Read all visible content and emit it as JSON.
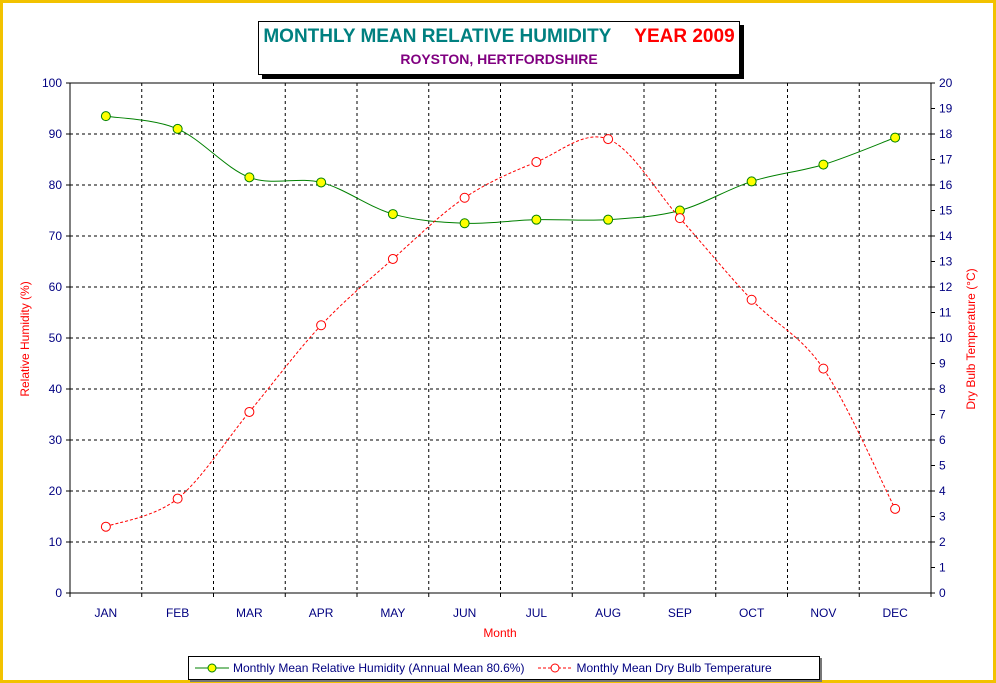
{
  "title": {
    "main": "MONTHLY MEAN RELATIVE HUMIDITY",
    "year": "YEAR 2009",
    "subtitle": "ROYSTON, HERTFORDSHIRE"
  },
  "chart_data": {
    "type": "line",
    "categories": [
      "JAN",
      "FEB",
      "MAR",
      "APR",
      "MAY",
      "JUN",
      "JUL",
      "AUG",
      "SEP",
      "OCT",
      "NOV",
      "DEC"
    ],
    "xlabel": "Month",
    "ylabel": "Relative Humidity (%)",
    "y2label": "Dry Bulb Temperature (°C)",
    "ylim": [
      0,
      100
    ],
    "yticks": [
      "0",
      "10",
      "20",
      "30",
      "40",
      "50",
      "60",
      "70",
      "80",
      "90",
      "100"
    ],
    "y2lim": [
      0,
      20
    ],
    "y2ticks": [
      "0",
      "1",
      "2",
      "3",
      "4",
      "5",
      "6",
      "7",
      "8",
      "9",
      "10",
      "11",
      "12",
      "13",
      "14",
      "15",
      "16",
      "17",
      "18",
      "19",
      "20"
    ],
    "grid": true,
    "legend_position": "bottom",
    "series": [
      {
        "name": "Monthly Mean Relative Humidity (Annual Mean 80.6%)",
        "axis": "left",
        "color": "#008000",
        "marker_fill": "#ffff00",
        "style": "solid",
        "values": [
          93.5,
          91.0,
          81.5,
          80.5,
          74.3,
          72.5,
          73.2,
          73.2,
          75.0,
          80.7,
          84.0,
          89.3
        ]
      },
      {
        "name": "Monthly Mean Dry Bulb Temperature",
        "axis": "right",
        "color": "#ff0000",
        "marker_fill": "#ffffff",
        "style": "dashed",
        "values": [
          2.6,
          3.7,
          7.1,
          10.5,
          13.1,
          15.5,
          16.9,
          17.8,
          14.7,
          11.5,
          8.8,
          3.3
        ]
      }
    ]
  }
}
